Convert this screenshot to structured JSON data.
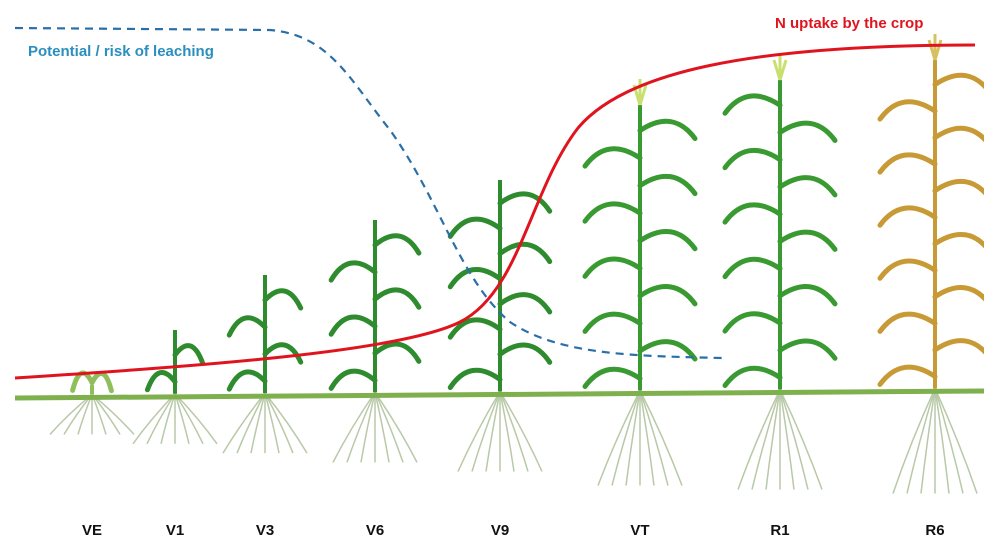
{
  "curves": [
    {
      "label": "Potential / risk of leaching"
    },
    {
      "label": "N uptake by the crop"
    }
  ],
  "stages": [
    "VE",
    "V1",
    "V3",
    "V6",
    "V9",
    "VT",
    "R1",
    "R6"
  ]
}
